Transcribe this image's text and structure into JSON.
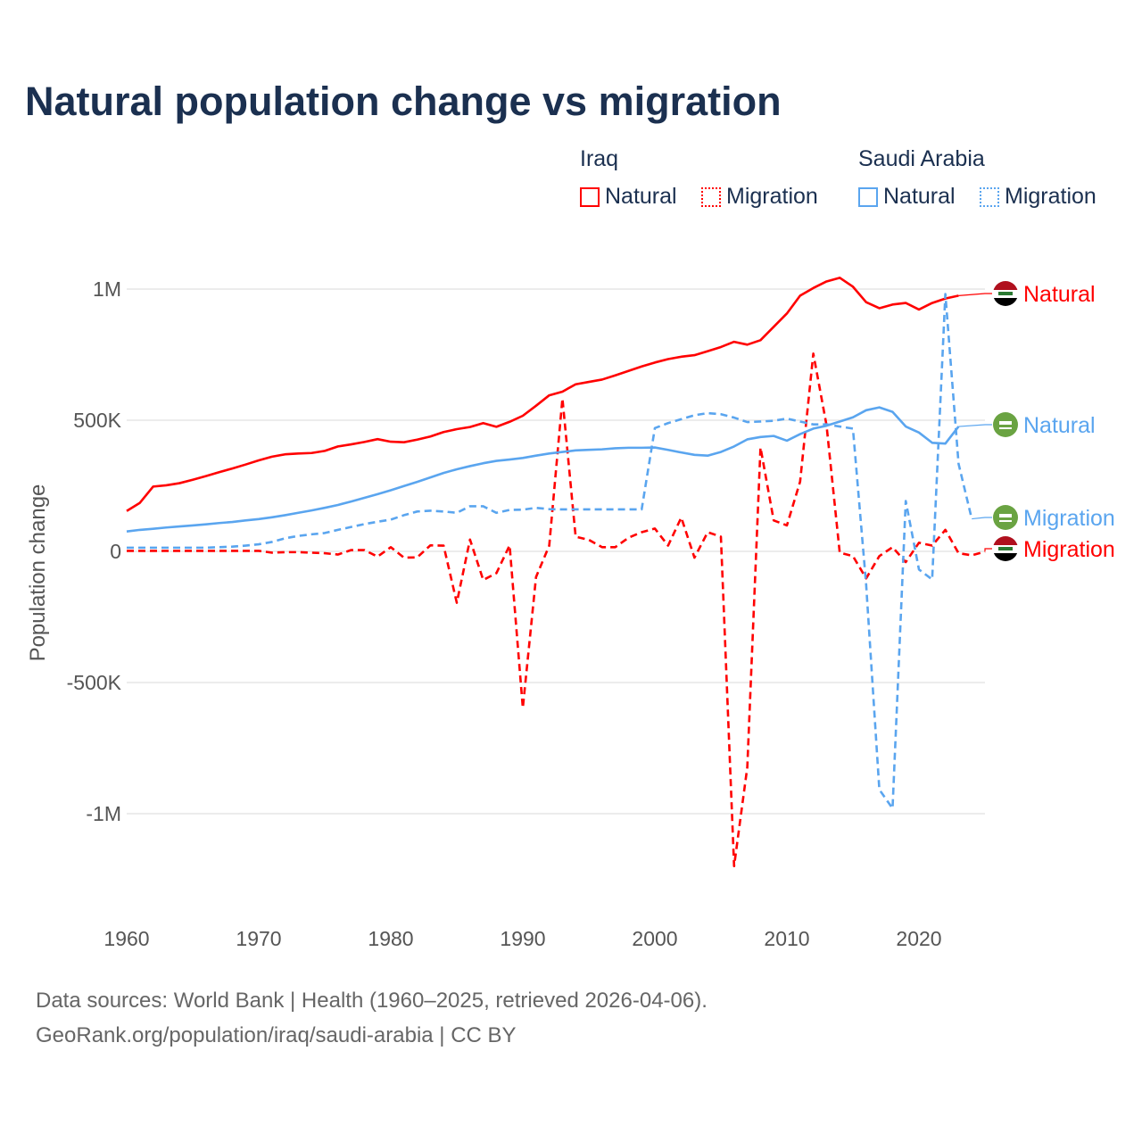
{
  "title": "Natural population change vs migration",
  "legend": {
    "groups": [
      {
        "name": "Iraq",
        "items": [
          "Natural",
          "Migration"
        ]
      },
      {
        "name": "Saudi Arabia",
        "items": [
          "Natural",
          "Migration"
        ]
      }
    ]
  },
  "footer": {
    "line1": "Data sources: World Bank | Health (1960–2025, retrieved 2026-04-06).",
    "line2": "GeoRank.org/population/iraq/saudi-arabia | CC BY"
  },
  "chart_data": {
    "type": "line",
    "title": "Natural population change vs migration",
    "ylabel": "Population change",
    "xlabel": "",
    "xlim": [
      1960,
      2025
    ],
    "ylim": [
      -1200000,
      1050000
    ],
    "x_ticks": [
      "1960",
      "1970",
      "1980",
      "1990",
      "2000",
      "2010",
      "2020"
    ],
    "y_ticks": [
      {
        "v": 1000000,
        "label": "1M"
      },
      {
        "v": 500000,
        "label": "500K"
      },
      {
        "v": 0,
        "label": "0"
      },
      {
        "v": -500000,
        "label": "-500K"
      },
      {
        "v": -1000000,
        "label": "-1M"
      }
    ],
    "grid": true,
    "start_year": 1960,
    "series": [
      {
        "name": "Natural",
        "country": "Iraq",
        "color": "#ff0000",
        "dash": false,
        "end_label": "Natural",
        "flag": "iraq",
        "values_k": [
          154,
          185,
          247,
          252,
          260,
          273,
          287,
          302,
          316,
          331,
          347,
          361,
          370,
          373,
          375,
          383,
          400,
          408,
          417,
          428,
          418,
          416,
          426,
          438,
          455,
          466,
          474,
          489,
          475,
          494,
          517,
          555,
          595,
          609,
          637,
          646,
          655,
          671,
          688,
          705,
          720,
          733,
          742,
          748,
          763,
          779,
          799,
          788,
          805,
          856,
          907,
          975,
          1004,
          1029,
          1043,
          1009,
          950,
          927,
          941,
          947,
          922,
          947,
          964,
          975
        ]
      },
      {
        "name": "Migration",
        "country": "Iraq",
        "color": "#ff0000",
        "dash": true,
        "end_label": "Migration",
        "flag": "iraq",
        "values_k": [
          2,
          2,
          2,
          2,
          2,
          2,
          2,
          2,
          2,
          2,
          2,
          -5,
          -3,
          -3,
          -5,
          -7,
          -12,
          5,
          5,
          -20,
          16,
          -24,
          -23,
          23,
          22,
          -196,
          45,
          -109,
          -83,
          23,
          -597,
          -98,
          22,
          583,
          56,
          44,
          16,
          16,
          52,
          73,
          87,
          22,
          129,
          -24,
          73,
          56,
          -1200,
          -823,
          396,
          118,
          99,
          266,
          754,
          481,
          -5,
          -18,
          -103,
          -18,
          16,
          -41,
          33,
          22,
          82,
          -7,
          -15,
          -1
        ]
      },
      {
        "name": "Natural",
        "country": "Saudi Arabia",
        "color": "#5aa5ef",
        "dash": false,
        "end_label": "Natural",
        "flag": "saudi",
        "values_k": [
          76,
          82,
          86,
          91,
          95,
          99,
          103,
          108,
          112,
          118,
          123,
          130,
          138,
          147,
          156,
          166,
          177,
          190,
          204,
          218,
          233,
          249,
          265,
          282,
          299,
          313,
          325,
          336,
          345,
          350,
          356,
          365,
          373,
          379,
          385,
          387,
          389,
          393,
          395,
          395,
          396,
          387,
          377,
          368,
          365,
          379,
          400,
          427,
          436,
          440,
          422,
          447,
          468,
          479,
          495,
          511,
          538,
          549,
          532,
          476,
          453,
          414,
          411,
          476
        ]
      },
      {
        "name": "Migration",
        "country": "Saudi Arabia",
        "color": "#5aa5ef",
        "dash": true,
        "end_label": "Migration",
        "flag": "saudi",
        "values_k": [
          14,
          14,
          14,
          14,
          14,
          14,
          14,
          16,
          18,
          22,
          27,
          36,
          50,
          59,
          65,
          70,
          82,
          93,
          104,
          113,
          121,
          138,
          152,
          155,
          152,
          147,
          172,
          172,
          147,
          158,
          159,
          166,
          161,
          160,
          160,
          160,
          160,
          160,
          160,
          160,
          470,
          489,
          504,
          519,
          527,
          523,
          510,
          493,
          495,
          498,
          506,
          495,
          484,
          484,
          476,
          468,
          -126,
          -908,
          -980,
          192,
          -69,
          -107,
          981,
          334,
          124
        ]
      }
    ]
  }
}
